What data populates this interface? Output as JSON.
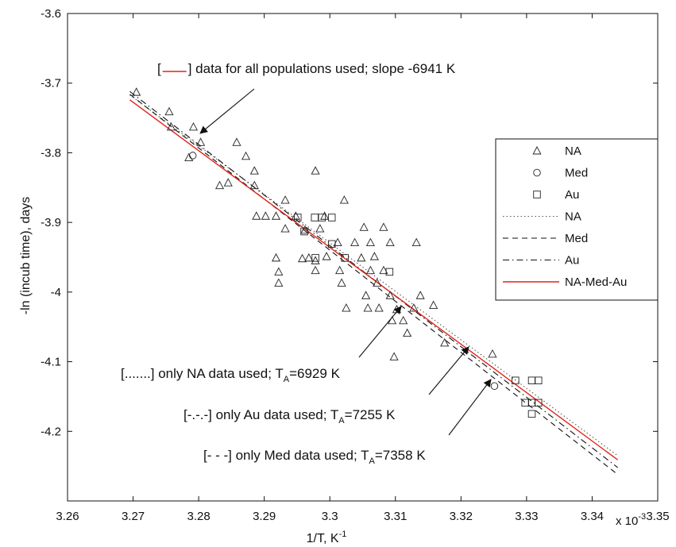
{
  "chart_data": {
    "type": "scatter",
    "xlabel": "1/T, K",
    "xlabel_sup": "-1",
    "ylabel": "-ln (incub time), days",
    "x_multiplier_base": "x 10",
    "x_multiplier_exp": "-3",
    "xlim": [
      3.26,
      3.35
    ],
    "ylim": [
      -4.3,
      -3.6
    ],
    "xticks": [
      "3.26",
      "3.27",
      "3.28",
      "3.29",
      "3.3",
      "3.31",
      "3.32",
      "3.33",
      "3.34",
      "3.35"
    ],
    "yticks": [
      "-3.6",
      "-3.7",
      "-3.8",
      "-3.9",
      "-4",
      "-4.1",
      "-4.2"
    ],
    "grid": false,
    "legend_position": "upper-right",
    "legend": [
      {
        "label": "NA",
        "style": "triangle"
      },
      {
        "label": "Med",
        "style": "circle"
      },
      {
        "label": "Au",
        "style": "square"
      },
      {
        "label": "NA",
        "style": "dotted"
      },
      {
        "label": "Med",
        "style": "dashed"
      },
      {
        "label": "Au",
        "style": "dashdot"
      },
      {
        "label": "NA-Med-Au",
        "style": "solid-red"
      }
    ],
    "series": [
      {
        "name": "NA",
        "marker": "triangle",
        "points": [
          [
            3.2705,
            -3.713
          ],
          [
            3.2755,
            -3.741
          ],
          [
            3.2758,
            -3.763
          ],
          [
            3.2792,
            -3.763
          ],
          [
            3.2785,
            -3.807
          ],
          [
            3.2803,
            -3.785
          ],
          [
            3.2858,
            -3.785
          ],
          [
            3.2872,
            -3.805
          ],
          [
            3.2885,
            -3.826
          ],
          [
            3.2845,
            -3.843
          ],
          [
            3.2885,
            -3.847
          ],
          [
            3.2832,
            -3.847
          ],
          [
            3.2888,
            -3.891
          ],
          [
            3.2902,
            -3.891
          ],
          [
            3.2918,
            -3.891
          ],
          [
            3.2932,
            -3.868
          ],
          [
            3.2932,
            -3.909
          ],
          [
            3.2948,
            -3.891
          ],
          [
            3.2962,
            -3.911
          ],
          [
            3.2978,
            -3.826
          ],
          [
            3.2992,
            -3.891
          ],
          [
            3.2985,
            -3.909
          ],
          [
            3.3012,
            -3.929
          ],
          [
            3.3022,
            -3.868
          ],
          [
            3.3038,
            -3.929
          ],
          [
            3.3052,
            -3.907
          ],
          [
            3.3062,
            -3.929
          ],
          [
            3.3082,
            -3.907
          ],
          [
            3.3092,
            -3.929
          ],
          [
            3.3132,
            -3.929
          ],
          [
            3.2918,
            -3.951
          ],
          [
            3.2922,
            -3.971
          ],
          [
            3.2922,
            -3.987
          ],
          [
            3.2968,
            -3.951
          ],
          [
            3.2978,
            -3.969
          ],
          [
            3.2995,
            -3.949
          ],
          [
            3.3015,
            -3.969
          ],
          [
            3.3018,
            -3.987
          ],
          [
            3.3048,
            -3.951
          ],
          [
            3.3062,
            -3.969
          ],
          [
            3.3072,
            -3.987
          ],
          [
            3.3068,
            -3.949
          ],
          [
            3.3082,
            -3.969
          ],
          [
            3.3025,
            -4.023
          ],
          [
            3.3055,
            -4.005
          ],
          [
            3.3058,
            -4.023
          ],
          [
            3.3075,
            -4.023
          ],
          [
            3.3092,
            -4.005
          ],
          [
            3.3095,
            -4.041
          ],
          [
            3.3112,
            -4.041
          ],
          [
            3.3118,
            -4.059
          ],
          [
            3.3128,
            -4.023
          ],
          [
            3.3138,
            -4.005
          ],
          [
            3.3158,
            -4.019
          ],
          [
            3.3175,
            -4.073
          ],
          [
            3.3098,
            -4.093
          ],
          [
            3.3248,
            -4.089
          ],
          [
            3.3102,
            -4.025
          ],
          [
            3.2978,
            -3.955
          ],
          [
            3.2958,
            -3.952
          ]
        ]
      },
      {
        "name": "Med",
        "marker": "circle",
        "points": [
          [
            3.2791,
            -3.804
          ],
          [
            3.3251,
            -4.135
          ]
        ]
      },
      {
        "name": "Au",
        "marker": "square",
        "points": [
          [
            3.2951,
            -3.893
          ],
          [
            3.2977,
            -3.893
          ],
          [
            3.2988,
            -3.893
          ],
          [
            3.3003,
            -3.893
          ],
          [
            3.2961,
            -3.913
          ],
          [
            3.3003,
            -3.931
          ],
          [
            3.2978,
            -3.951
          ],
          [
            3.3023,
            -3.951
          ],
          [
            3.3091,
            -3.971
          ],
          [
            3.3283,
            -4.127
          ],
          [
            3.3308,
            -4.127
          ],
          [
            3.3318,
            -4.127
          ],
          [
            3.3298,
            -4.159
          ],
          [
            3.3308,
            -4.159
          ],
          [
            3.3318,
            -4.159
          ],
          [
            3.3308,
            -4.175
          ]
        ]
      }
    ],
    "fit_lines": [
      {
        "name": "NA",
        "style": "dotted",
        "x": [
          3.2695,
          3.3439
        ],
        "y": [
          -3.717,
          -4.235
        ]
      },
      {
        "name": "Med",
        "style": "dashed",
        "x": [
          3.2695,
          3.3439
        ],
        "y": [
          -3.716,
          -4.262
        ]
      },
      {
        "name": "Au",
        "style": "dashdot",
        "x": [
          3.2695,
          3.3439
        ],
        "y": [
          -3.712,
          -4.252
        ]
      },
      {
        "name": "NA-Med-Au",
        "style": "solid-red",
        "color": "#e2231a",
        "x": [
          3.2695,
          3.3439
        ],
        "y": [
          -3.724,
          -4.241
        ]
      }
    ],
    "annotations": [
      {
        "id": "all",
        "parts": [
          {
            "t": "[",
            "k": "text"
          },
          {
            "t": "",
            "k": "redline"
          },
          {
            "t": "] data for all populations used; slope -6941 K",
            "k": "text"
          }
        ]
      },
      {
        "id": "na",
        "parts": [
          {
            "t": "[.......] only NA data used; T",
            "k": "text"
          },
          {
            "t": "A",
            "k": "sub"
          },
          {
            "t": "=6929 K",
            "k": "text"
          }
        ]
      },
      {
        "id": "au",
        "parts": [
          {
            "t": "[-.-.-] only Au data used; T",
            "k": "text"
          },
          {
            "t": "A",
            "k": "sub"
          },
          {
            "t": "=7255 K",
            "k": "text"
          }
        ]
      },
      {
        "id": "med",
        "parts": [
          {
            "t": "[- - -] only Med data used; T",
            "k": "text"
          },
          {
            "t": "A",
            "k": "sub"
          },
          {
            "t": "=7358 K",
            "k": "text"
          }
        ]
      }
    ]
  }
}
